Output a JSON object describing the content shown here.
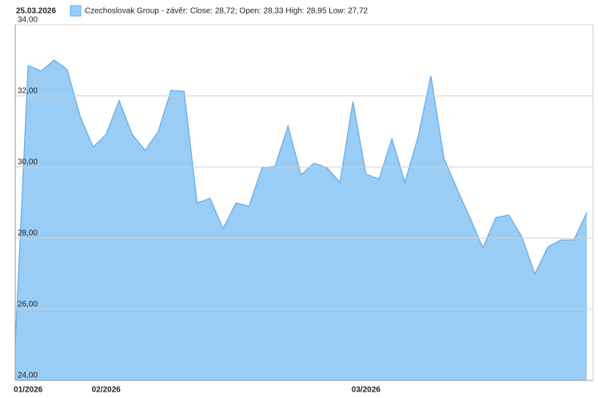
{
  "date": "25.03.2026",
  "chart_data": {
    "type": "area",
    "categories": [
      null,
      "01/2026",
      null,
      null,
      null,
      null,
      null,
      "02/2026",
      null,
      null,
      null,
      null,
      null,
      null,
      null,
      null,
      null,
      null,
      null,
      null,
      null,
      null,
      null,
      null,
      null,
      null,
      null,
      "03/2026",
      null,
      null,
      null,
      null,
      null,
      null,
      null,
      null,
      null,
      null,
      null,
      null,
      null,
      null,
      null,
      null,
      null
    ],
    "series": [
      {
        "name": "Czechoslovak Group - závěr: Close: 28,72; Open: 28,33 High: 28,95 Low: 27,72",
        "color": "#99cdf6",
        "line_color": "#6aaee6",
        "values": [
          24.99,
          32.85,
          32.7,
          33.01,
          32.74,
          31.42,
          30.56,
          30.92,
          31.87,
          30.92,
          30.47,
          30.99,
          32.16,
          32.13,
          28.99,
          29.12,
          28.27,
          28.99,
          28.9,
          29.98,
          30.02,
          31.15,
          29.78,
          30.11,
          29.98,
          29.57,
          31.84,
          29.8,
          29.66,
          30.79,
          29.57,
          30.83,
          32.56,
          30.25,
          29.39,
          28.58,
          27.73,
          28.58,
          28.65,
          28.04,
          26.99,
          27.75,
          27.95,
          27.95,
          28.72
        ]
      }
    ],
    "ylim": [
      24,
      34
    ],
    "yticks": [
      {
        "value": 24,
        "label": "24,00"
      },
      {
        "value": 26,
        "label": "26,00"
      },
      {
        "value": 28,
        "label": "28,00"
      },
      {
        "value": 30,
        "label": "30,00"
      },
      {
        "value": 32,
        "label": "32,00"
      },
      {
        "value": 34,
        "label": "34,00"
      }
    ],
    "grid": true
  }
}
